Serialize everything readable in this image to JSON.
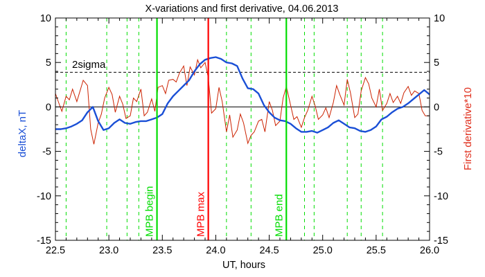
{
  "chart_data": {
    "type": "line",
    "title": "X-variations and first derivative, 04.06.2013",
    "xlabel": "UT, hours",
    "ylabel_left": "deltaX, nT",
    "ylabel_right": "First derivative*10",
    "xlim": [
      22.5,
      26.0
    ],
    "ylim": [
      -15,
      10
    ],
    "x_ticks": [
      "22.5",
      "23.0",
      "23.5",
      "24.0",
      "24.5",
      "25.0",
      "25.5",
      "26.0"
    ],
    "x_tick_values": [
      22.5,
      23.0,
      23.5,
      24.0,
      24.5,
      25.0,
      25.5,
      26.0
    ],
    "y_ticks": [
      "10",
      "5",
      "0",
      "-5",
      "-10",
      "-15"
    ],
    "y_tick_values": [
      10,
      5,
      0,
      -5,
      -10,
      -15
    ],
    "threshold": {
      "label": "2sigma",
      "value": 3.9
    },
    "zero_line": 0,
    "colors": {
      "deltaX": "#1a4fd6",
      "derivative": "#cc2200",
      "green": "#00dd00",
      "red": "#ff0000",
      "axis_left": "#1a4fd6",
      "axis_right": "#e0301e"
    },
    "dashed_green_lines": [
      22.6,
      22.98,
      23.17,
      23.28,
      24.1,
      24.33,
      24.83,
      24.92,
      25.23,
      25.36,
      25.56
    ],
    "markers": [
      {
        "x": 23.45,
        "label": "MPB begin",
        "color": "#00dd00"
      },
      {
        "x": 23.93,
        "label": "MPB max",
        "color": "#ff0000"
      },
      {
        "x": 24.66,
        "label": "MPB end",
        "color": "#00dd00"
      }
    ],
    "series": [
      {
        "name": "deltaX",
        "x": [
          22.5,
          22.55,
          22.6,
          22.65,
          22.7,
          22.75,
          22.8,
          22.85,
          22.9,
          22.95,
          23.0,
          23.05,
          23.1,
          23.15,
          23.2,
          23.25,
          23.3,
          23.35,
          23.4,
          23.45,
          23.5,
          23.55,
          23.6,
          23.65,
          23.7,
          23.75,
          23.8,
          23.85,
          23.9,
          23.95,
          24.0,
          24.05,
          24.1,
          24.15,
          24.2,
          24.25,
          24.3,
          24.35,
          24.4,
          24.45,
          24.5,
          24.55,
          24.6,
          24.65,
          24.7,
          24.75,
          24.8,
          24.85,
          24.9,
          24.95,
          25.0,
          25.05,
          25.1,
          25.15,
          25.2,
          25.25,
          25.3,
          25.35,
          25.4,
          25.45,
          25.5,
          25.55,
          25.6,
          25.65,
          25.7,
          25.75,
          25.8,
          25.85,
          25.9,
          25.95,
          26.0
        ],
        "y": [
          -2.5,
          -2.5,
          -2.4,
          -2.2,
          -1.9,
          -1.5,
          -0.6,
          0.0,
          -1.6,
          -2.6,
          -2.4,
          -1.8,
          -1.4,
          -1.8,
          -1.9,
          -1.7,
          -1.6,
          -1.6,
          -1.4,
          -1.2,
          -0.8,
          0.4,
          1.2,
          1.8,
          2.4,
          3.0,
          4.0,
          4.8,
          5.3,
          5.5,
          5.6,
          5.4,
          5.0,
          4.9,
          4.6,
          3.2,
          2.1,
          2.0,
          1.5,
          0.2,
          -0.6,
          -1.2,
          -1.5,
          -1.6,
          -1.9,
          -2.4,
          -2.8,
          -2.8,
          -2.7,
          -2.9,
          -2.6,
          -2.3,
          -1.8,
          -1.5,
          -1.9,
          -2.3,
          -2.4,
          -2.7,
          -2.8,
          -2.6,
          -2.2,
          -1.4,
          -1.1,
          -0.6,
          -0.2,
          0.0,
          0.4,
          0.9,
          1.4,
          1.9,
          1.4
        ]
      },
      {
        "name": "First derivative*10",
        "x": [
          22.5,
          22.53,
          22.56,
          22.6,
          22.63,
          22.66,
          22.7,
          22.73,
          22.76,
          22.8,
          22.83,
          22.86,
          22.9,
          22.93,
          22.96,
          23.0,
          23.03,
          23.06,
          23.1,
          23.13,
          23.16,
          23.2,
          23.23,
          23.26,
          23.3,
          23.33,
          23.36,
          23.4,
          23.43,
          23.46,
          23.5,
          23.53,
          23.56,
          23.6,
          23.63,
          23.66,
          23.7,
          23.73,
          23.76,
          23.8,
          23.83,
          23.86,
          23.9,
          23.93,
          23.96,
          24.0,
          24.03,
          24.06,
          24.1,
          24.13,
          24.16,
          24.2,
          24.23,
          24.26,
          24.3,
          24.33,
          24.36,
          24.4,
          24.43,
          24.46,
          24.5,
          24.53,
          24.56,
          24.6,
          24.63,
          24.66,
          24.7,
          24.73,
          24.76,
          24.8,
          24.83,
          24.86,
          24.9,
          24.93,
          24.96,
          25.0,
          25.03,
          25.06,
          25.1,
          25.13,
          25.16,
          25.2,
          25.23,
          25.26,
          25.3,
          25.33,
          25.36,
          25.4,
          25.43,
          25.46,
          25.5,
          25.53,
          25.56,
          25.6,
          25.63,
          25.66,
          25.7,
          25.73,
          25.76,
          25.8,
          25.83,
          25.86,
          25.9,
          25.93,
          25.96,
          26.0
        ],
        "y": [
          1.5,
          0.5,
          -0.5,
          1.2,
          0.8,
          2.0,
          0.6,
          1.8,
          3.0,
          2.4,
          -2.5,
          -4.2,
          -1.8,
          -0.8,
          1.0,
          2.2,
          1.4,
          -0.6,
          1.2,
          0.3,
          -1.3,
          -1.0,
          1.0,
          0.6,
          2.0,
          -1.0,
          -0.6,
          0.9,
          -0.5,
          2.2,
          2.4,
          1.5,
          3.0,
          3.1,
          2.8,
          3.8,
          4.6,
          2.4,
          4.5,
          3.6,
          5.3,
          4.4,
          5.0,
          3.3,
          -0.7,
          -0.2,
          2.2,
          0.6,
          -2.8,
          -0.9,
          -3.4,
          -2.6,
          -0.8,
          -1.8,
          -4.1,
          -3.2,
          -2.8,
          -1.6,
          -1.4,
          -2.8,
          0.6,
          -0.4,
          -2.1,
          -1.6,
          1.0,
          2.3,
          0.2,
          -1.4,
          -1.1,
          -2.3,
          -1.2,
          -0.4,
          1.2,
          0.1,
          -1.4,
          -0.9,
          -0.1,
          -1.2,
          0.5,
          2.4,
          1.4,
          0.2,
          3.1,
          1.6,
          -1.2,
          -0.8,
          1.8,
          3.3,
          2.6,
          1.0,
          0.0,
          2.0,
          -0.4,
          0.4,
          1.5,
          0.5,
          1.2,
          0.4,
          1.6,
          2.3,
          1.3,
          1.8,
          1.5,
          -0.4,
          -1.0,
          -1.0
        ]
      }
    ]
  }
}
